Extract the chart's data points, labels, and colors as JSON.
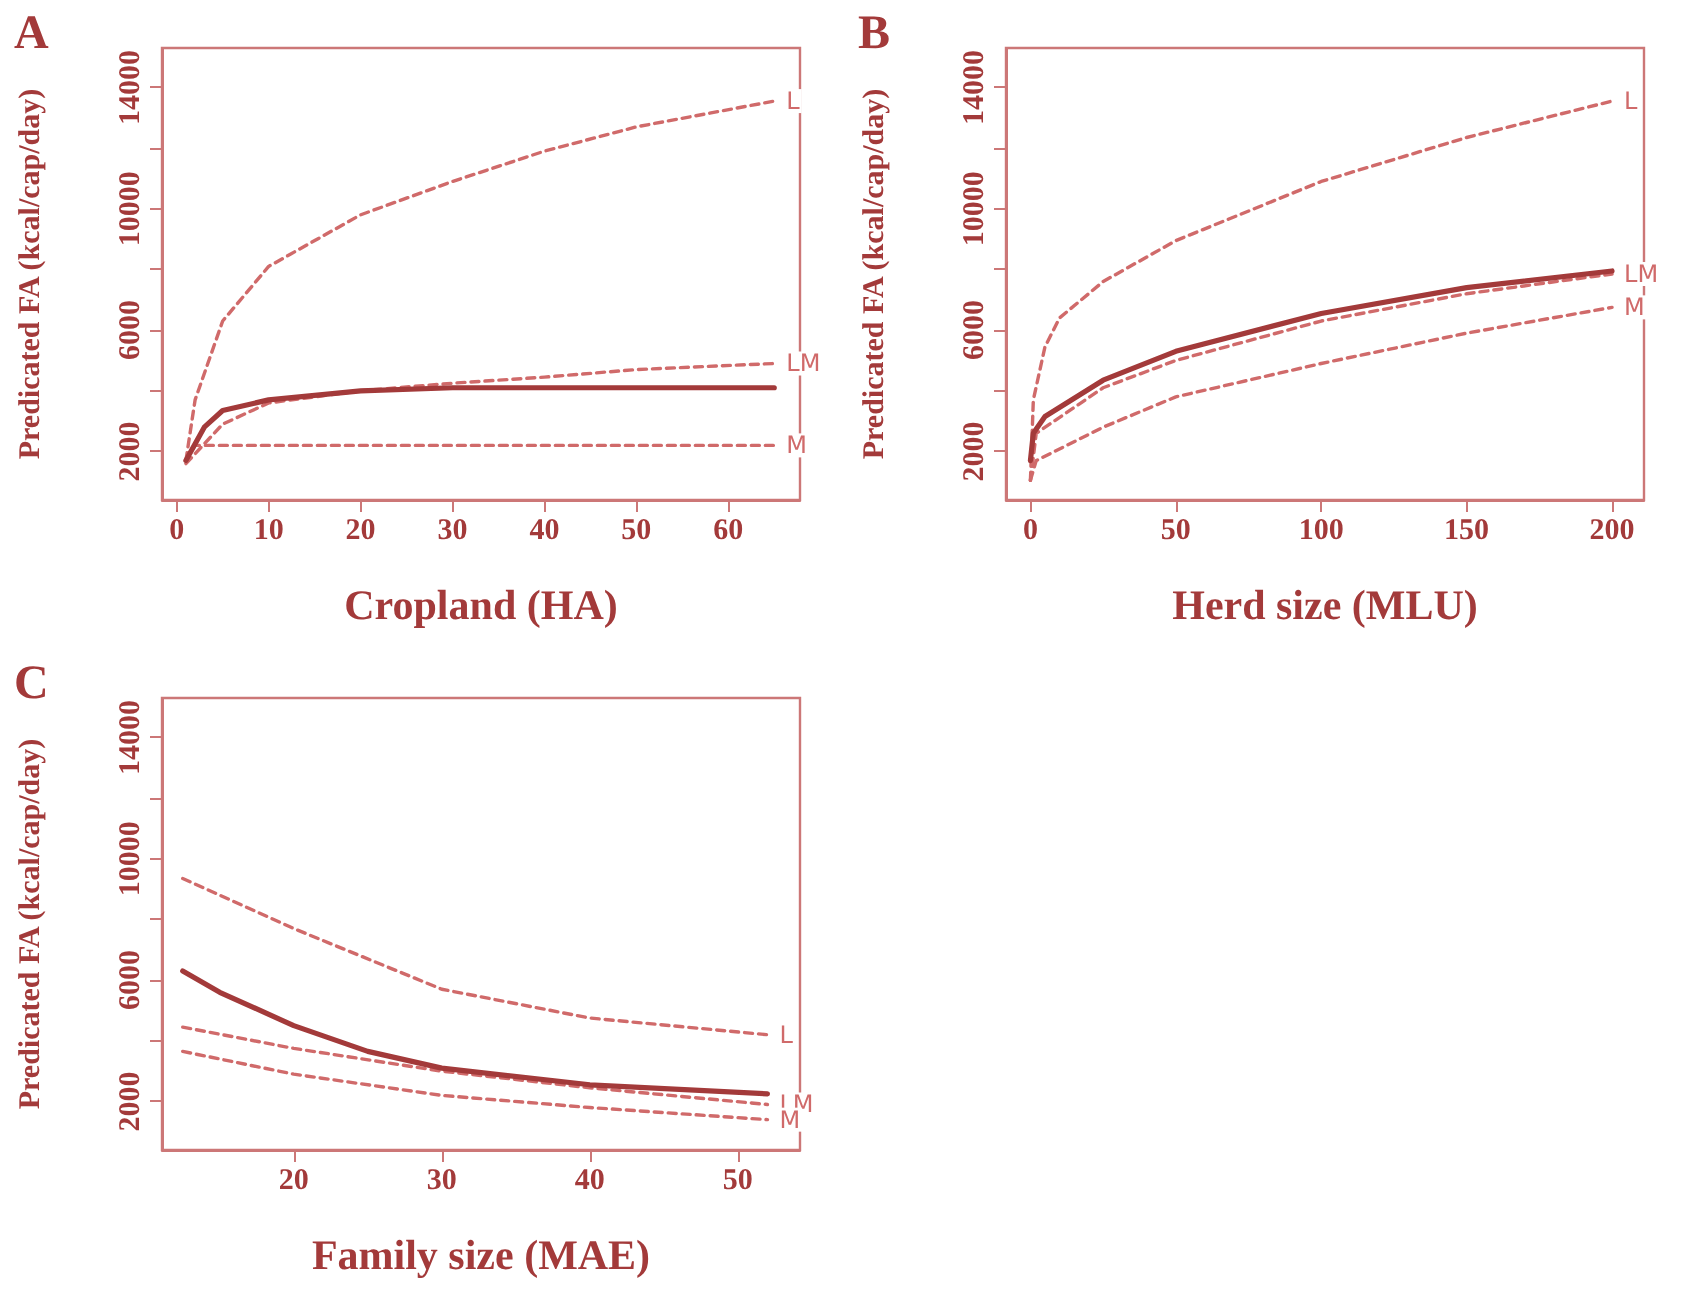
{
  "chart_data": [
    {
      "type": "line",
      "title": "A",
      "xlabel": "Cropland (HA)",
      "ylabel": "Predicated FA (kcal/cap/day)",
      "xlim": [
        -1.6,
        67.8
      ],
      "ylim": [
        400,
        15300
      ],
      "xticks": [
        0,
        10,
        20,
        30,
        40,
        50,
        60
      ],
      "yticks": [
        2000,
        {
          "value": 4000,
          "label": null
        },
        6000,
        {
          "value": 8000,
          "label": null
        },
        10000,
        {
          "value": 12000,
          "label": null
        },
        14000
      ],
      "grid": false,
      "legend": false,
      "marker": "none",
      "series": [
        {
          "name": "L",
          "color": "#d06a6a",
          "line_style": "dashed",
          "x": [
            1,
            2,
            5,
            10,
            20,
            30,
            40,
            50,
            65
          ],
          "values": [
            1700,
            3700,
            6300,
            8100,
            9800,
            10900,
            11900,
            12700,
            13550
          ]
        },
        {
          "name": "LM",
          "color": "#d06a6a",
          "line_style": "dashed",
          "x": [
            1,
            5,
            10,
            20,
            30,
            40,
            50,
            65
          ],
          "values": [
            1600,
            2900,
            3600,
            4000,
            4250,
            4450,
            4700,
            4900
          ]
        },
        {
          "name": "M",
          "color": "#d06a6a",
          "line_style": "dashed",
          "x": [
            1,
            2,
            65
          ],
          "values": [
            1700,
            2200,
            2200
          ]
        },
        {
          "color": "#a33a3a",
          "line_style": "solid",
          "x": [
            1,
            3,
            5,
            10,
            20,
            30,
            65
          ],
          "values": [
            1700,
            2800,
            3350,
            3700,
            4000,
            4100,
            4100
          ]
        }
      ]
    },
    {
      "type": "line",
      "title": "B",
      "xlabel": "Herd size (MLU)",
      "ylabel": "Predicated FA (kcal/cap/day)",
      "xlim": [
        -8.4,
        211
      ],
      "ylim": [
        400,
        15300
      ],
      "xticks": [
        0,
        50,
        100,
        150,
        200
      ],
      "yticks": [
        2000,
        {
          "value": 4000,
          "label": null
        },
        6000,
        {
          "value": 8000,
          "label": null
        },
        10000,
        {
          "value": 12000,
          "label": null
        },
        14000
      ],
      "grid": false,
      "legend": false,
      "marker": "none",
      "series": [
        {
          "name": "L",
          "color": "#d06a6a",
          "line_style": "dashed",
          "x": [
            0,
            1,
            5,
            10,
            25,
            50,
            100,
            150,
            200
          ],
          "values": [
            1050,
            3700,
            5450,
            6400,
            7600,
            8950,
            10900,
            12350,
            13550
          ]
        },
        {
          "name": "LM",
          "color": "#d06a6a",
          "line_style": "dashed",
          "x": [
            0,
            2,
            25,
            50,
            100,
            150,
            200
          ],
          "values": [
            1050,
            2600,
            4100,
            5000,
            6300,
            7200,
            7850
          ]
        },
        {
          "name": "M",
          "color": "#d06a6a",
          "line_style": "dashed",
          "x": [
            0,
            2,
            25,
            50,
            100,
            150,
            200
          ],
          "values": [
            1050,
            1700,
            2800,
            3800,
            4900,
            5900,
            6750
          ]
        },
        {
          "color": "#a33a3a",
          "line_style": "solid",
          "x": [
            0,
            1,
            5,
            25,
            50,
            100,
            150,
            200
          ],
          "values": [
            1700,
            2600,
            3150,
            4350,
            5300,
            6550,
            7400,
            7950
          ]
        }
      ]
    },
    {
      "type": "line",
      "title": "C",
      "xlabel": "Family size (MAE)",
      "ylabel": "Predicated FA (kcal/cap/day)",
      "xlim": [
        11.1,
        54.2
      ],
      "ylim": [
        400,
        15300
      ],
      "xticks": [
        20,
        30,
        40,
        50
      ],
      "yticks": [
        2000,
        {
          "value": 4000,
          "label": null
        },
        6000,
        {
          "value": 8000,
          "label": null
        },
        10000,
        {
          "value": 12000,
          "label": null
        },
        14000
      ],
      "grid": false,
      "legend": false,
      "marker": "none",
      "series": [
        {
          "name": "L",
          "color": "#d06a6a",
          "line_style": "dashed",
          "x": [
            12.5,
            20,
            30,
            40,
            52
          ],
          "values": [
            9350,
            7700,
            5700,
            4750,
            4200
          ]
        },
        {
          "name": "LM",
          "color": "#d06a6a",
          "line_style": "dashed",
          "x": [
            12.5,
            20,
            30,
            40,
            52
          ],
          "values": [
            4450,
            3750,
            3000,
            2450,
            1900
          ]
        },
        {
          "name": "M",
          "color": "#d06a6a",
          "line_style": "dashed",
          "x": [
            12.5,
            20,
            30,
            40,
            52
          ],
          "values": [
            3650,
            2900,
            2200,
            1800,
            1400
          ]
        },
        {
          "color": "#a33a3a",
          "line_style": "solid",
          "x": [
            12.5,
            15,
            20,
            25,
            30,
            40,
            52
          ],
          "values": [
            6300,
            5600,
            4500,
            3650,
            3100,
            2550,
            2250
          ]
        }
      ]
    }
  ]
}
